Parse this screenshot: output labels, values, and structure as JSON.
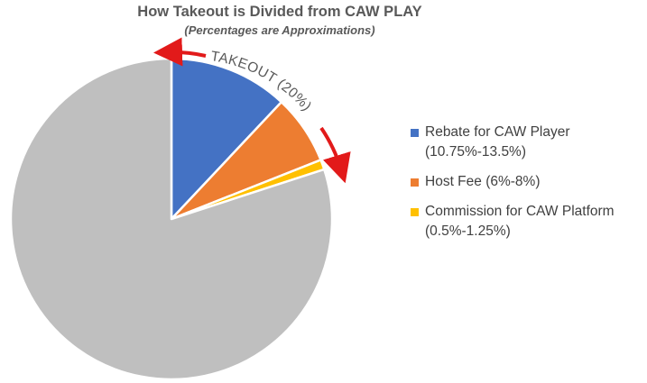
{
  "chart_data": {
    "type": "pie",
    "title": "How Takeout is Divided from CAW PLAY",
    "subtitle": "(Percentages are Approximations)",
    "slices": [
      {
        "label": "Rebate for CAW Player",
        "range": "(10.75%-13.5%)",
        "value": 12.0,
        "color": "#4472C4"
      },
      {
        "label": "Host Fee",
        "range": "(6%-8%)",
        "value": 7.0,
        "color": "#ED7D31"
      },
      {
        "label": "Commission for CAW Platform",
        "range": "(0.5%-1.25%)",
        "value": 1.0,
        "color": "#FFC000"
      },
      {
        "label": "",
        "range": "",
        "value": 80.0,
        "color": "#BFBFBF"
      }
    ],
    "annotation": "TAKEOUT (20%)",
    "arrow_color": "#E21A1A",
    "legend": [
      {
        "line1": "Rebate for CAW Player",
        "line2": "(10.75%-13.5%)",
        "color": "#4472C4"
      },
      {
        "line1": "Host Fee (6%-8%)",
        "line2": "",
        "color": "#ED7D31"
      },
      {
        "line1": "Commission for CAW Platform",
        "line2": "(0.5%-1.25%)",
        "color": "#FFC000"
      }
    ]
  }
}
